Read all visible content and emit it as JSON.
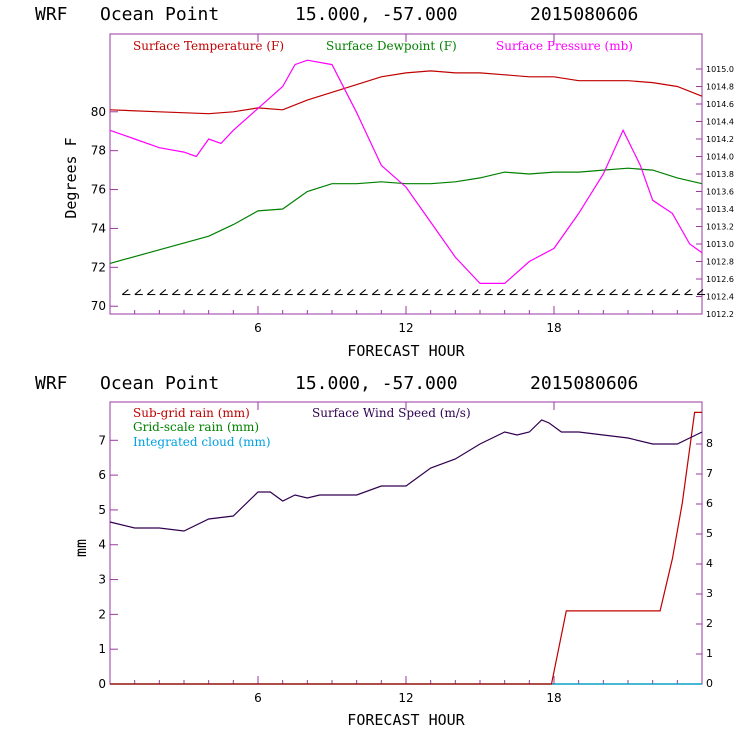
{
  "chart_data": [
    {
      "type": "line",
      "header": {
        "model": "WRF",
        "location": "Ocean Point",
        "coords": "15.000, -57.000",
        "run": "2015080606"
      },
      "xlabel": "FORECAST HOUR",
      "ylabel": "Degrees F",
      "xlim": [
        0,
        24
      ],
      "ylim": [
        69.6,
        84.0
      ],
      "y2lim": [
        1012.2,
        1015.4
      ],
      "x_ticks": [
        6,
        12,
        18
      ],
      "y_ticks": [
        70,
        72,
        74,
        76,
        78,
        80
      ],
      "y2_ticks": [
        "1012.2",
        "1012.4",
        "1012.6",
        "1012.8",
        "1013.0",
        "1013.2",
        "1013.4",
        "1013.6",
        "1013.8",
        "1014.0",
        "1014.2",
        "1014.4",
        "1014.6",
        "1014.8",
        "1015.0"
      ],
      "series": [
        {
          "name": "Surface Temperature (F)",
          "color": "#c00000",
          "axis": "left",
          "x": [
            0,
            2,
            4,
            5,
            6,
            7,
            8,
            9,
            10,
            11,
            12,
            13,
            14,
            15,
            16,
            17,
            18,
            19,
            20,
            21,
            22,
            23,
            24
          ],
          "values": [
            80.1,
            80.0,
            79.9,
            80.0,
            80.2,
            80.1,
            80.6,
            81.0,
            81.4,
            81.8,
            82.0,
            82.1,
            82.0,
            82.0,
            81.9,
            81.8,
            81.8,
            81.6,
            81.6,
            81.6,
            81.5,
            81.3,
            80.8
          ]
        },
        {
          "name": "Surface Dewpoint (F)",
          "color": "#008000",
          "axis": "left",
          "x": [
            0,
            2,
            4,
            5,
            6,
            7,
            8,
            9,
            10,
            11,
            12,
            13,
            14,
            15,
            16,
            17,
            18,
            19,
            20,
            21,
            22,
            23,
            24
          ],
          "values": [
            72.2,
            72.9,
            73.6,
            74.2,
            74.9,
            75.0,
            75.9,
            76.3,
            76.3,
            76.4,
            76.3,
            76.3,
            76.4,
            76.6,
            76.9,
            76.8,
            76.9,
            76.9,
            77.0,
            77.1,
            77.0,
            76.6,
            76.3
          ]
        },
        {
          "name": "Surface Pressure (mb)",
          "color": "#ff00ff",
          "axis": "right",
          "x": [
            0,
            1,
            2,
            3,
            3.5,
            4,
            4.5,
            5,
            6,
            7,
            7.5,
            8,
            9,
            10,
            11,
            12,
            13,
            14,
            15,
            16,
            17,
            18,
            19,
            20,
            20.8,
            21.5,
            22,
            22.8,
            23.5,
            24
          ],
          "values": [
            1014.3,
            1014.2,
            1014.1,
            1014.05,
            1014.0,
            1014.2,
            1014.15,
            1014.3,
            1014.55,
            1014.8,
            1015.05,
            1015.1,
            1015.05,
            1014.5,
            1013.9,
            1013.65,
            1013.25,
            1012.85,
            1012.55,
            1012.55,
            1012.8,
            1012.95,
            1013.35,
            1013.8,
            1014.3,
            1013.9,
            1013.5,
            1013.35,
            1013.0,
            1012.9
          ]
        }
      ],
      "wind_barbs": {
        "count": 47,
        "color": "#000000"
      }
    },
    {
      "type": "line",
      "header": {
        "model": "WRF",
        "location": "Ocean Point",
        "coords": "15.000, -57.000",
        "run": "2015080606"
      },
      "xlabel": "FORECAST HOUR",
      "ylabel": "mm",
      "xlim": [
        0,
        24
      ],
      "ylim": [
        0,
        8.1
      ],
      "y2lim": [
        0,
        9.4
      ],
      "x_ticks": [
        6,
        12,
        18
      ],
      "y_ticks": [
        0,
        1,
        2,
        3,
        4,
        5,
        6,
        7
      ],
      "y2_ticks": [
        0,
        1,
        2,
        3,
        4,
        5,
        6,
        7,
        8
      ],
      "legend_left": [
        "Sub-grid rain (mm)",
        "Grid-scale rain (mm)",
        "Integrated cloud (mm)"
      ],
      "series": [
        {
          "name": "Sub-grid rain (mm)",
          "color": "#c00000",
          "axis": "left",
          "x": [
            0,
            17.9,
            18.5,
            22.3,
            22.8,
            23.2,
            23.7,
            24
          ],
          "values": [
            0,
            0,
            2.1,
            2.1,
            3.6,
            5.2,
            7.8,
            7.8
          ]
        },
        {
          "name": "Grid-scale rain (mm)",
          "color": "#008000",
          "axis": "left",
          "x": [
            0,
            24
          ],
          "values": [
            0,
            0
          ]
        },
        {
          "name": "Integrated cloud (mm)",
          "color": "#00a0e0",
          "axis": "left",
          "x": [
            0,
            24
          ],
          "values": [
            0,
            0
          ]
        },
        {
          "name": "Surface Wind Speed (m/s)",
          "color": "#300050",
          "axis": "right",
          "x": [
            0,
            1,
            2,
            3,
            4,
            5,
            6,
            6.5,
            7,
            7.5,
            8,
            8.5,
            9,
            10,
            11,
            12,
            13,
            14,
            15,
            16,
            16.5,
            17,
            17.5,
            17.8,
            18.3,
            19,
            20,
            21,
            22,
            23,
            24
          ],
          "values": [
            5.4,
            5.2,
            5.2,
            5.1,
            5.5,
            5.6,
            6.4,
            6.4,
            6.1,
            6.3,
            6.2,
            6.3,
            6.3,
            6.3,
            6.6,
            6.6,
            7.2,
            7.5,
            8.0,
            8.4,
            8.3,
            8.4,
            8.8,
            8.7,
            8.4,
            8.4,
            8.3,
            8.2,
            8.0,
            8.0,
            8.4
          ]
        }
      ]
    }
  ]
}
